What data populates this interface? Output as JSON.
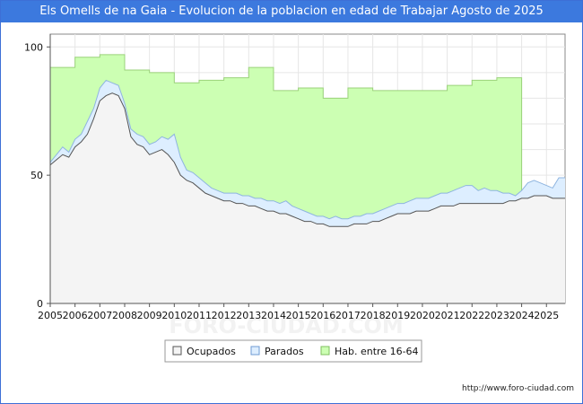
{
  "title": "Els Omells de na Gaia - Evolucion de la poblacion en edad de Trabajar Agosto de 2025",
  "source": "http://www.foro-ciudad.com",
  "watermark": "FORO-CIUDAD.COM",
  "chart_data": {
    "type": "area",
    "xlim": [
      2005,
      2025.75
    ],
    "ylim": [
      0,
      105
    ],
    "x_ticks": [
      "2005",
      "2006",
      "2007",
      "2008",
      "2009",
      "2010",
      "2011",
      "2012",
      "2013",
      "2014",
      "2015",
      "2016",
      "2017",
      "2018",
      "2019",
      "2020",
      "2021",
      "2022",
      "2023",
      "2024",
      "2025"
    ],
    "y_ticks": [
      0,
      50,
      100
    ],
    "grid": true,
    "legend_position": "bottom-center",
    "colors": {
      "hab": "#ccffb3",
      "hab_line": "#9ad27a",
      "parados": "#ddeeff",
      "parados_line": "#8fb5e0",
      "ocupados": "#f4f4f4",
      "ocupados_line": "#555555"
    },
    "series": [
      {
        "name": "Hab. entre 16-64",
        "step": true,
        "x": [
          2005,
          2006,
          2007,
          2008,
          2009,
          2010,
          2011,
          2012,
          2013,
          2014,
          2015,
          2016,
          2017,
          2018,
          2019,
          2020,
          2021,
          2022,
          2023,
          2024
        ],
        "values": [
          92,
          96,
          97,
          91,
          90,
          86,
          87,
          88,
          92,
          83,
          84,
          80,
          84,
          83,
          83,
          83,
          85,
          87,
          88,
          44
        ]
      },
      {
        "name": "Parados",
        "x": [
          2005,
          2005.25,
          2005.5,
          2005.75,
          2006,
          2006.25,
          2006.5,
          2006.75,
          2007,
          2007.25,
          2007.5,
          2007.75,
          2008,
          2008.25,
          2008.5,
          2008.75,
          2009,
          2009.25,
          2009.5,
          2009.75,
          2010,
          2010.25,
          2010.5,
          2010.75,
          2011,
          2011.25,
          2011.5,
          2011.75,
          2012,
          2012.25,
          2012.5,
          2012.75,
          2013,
          2013.25,
          2013.5,
          2013.75,
          2014,
          2014.25,
          2014.5,
          2014.75,
          2015,
          2015.25,
          2015.5,
          2015.75,
          2016,
          2016.25,
          2016.5,
          2016.75,
          2017,
          2017.25,
          2017.5,
          2017.75,
          2018,
          2018.25,
          2018.5,
          2018.75,
          2019,
          2019.25,
          2019.5,
          2019.75,
          2020,
          2020.25,
          2020.5,
          2020.75,
          2021,
          2021.25,
          2021.5,
          2021.75,
          2022,
          2022.25,
          2022.5,
          2022.75,
          2023,
          2023.25,
          2023.5,
          2023.75,
          2024,
          2024.25,
          2024.5,
          2024.75,
          2025,
          2025.25,
          2025.5
        ],
        "values": [
          55,
          58,
          61,
          59,
          64,
          66,
          71,
          76,
          84,
          87,
          86,
          85,
          78,
          68,
          66,
          65,
          62,
          63,
          65,
          64,
          66,
          57,
          52,
          51,
          49,
          47,
          45,
          44,
          43,
          43,
          43,
          42,
          42,
          41,
          41,
          40,
          40,
          39,
          40,
          38,
          37,
          36,
          35,
          34,
          34,
          33,
          34,
          33,
          33,
          34,
          34,
          35,
          35,
          36,
          37,
          38,
          39,
          39,
          40,
          41,
          41,
          41,
          42,
          43,
          43,
          44,
          45,
          46,
          46,
          44,
          45,
          44,
          44,
          43,
          43,
          42,
          44,
          47,
          48,
          47,
          46,
          45,
          49
        ]
      },
      {
        "name": "Ocupados",
        "x": [
          2005,
          2005.25,
          2005.5,
          2005.75,
          2006,
          2006.25,
          2006.5,
          2006.75,
          2007,
          2007.25,
          2007.5,
          2007.75,
          2008,
          2008.25,
          2008.5,
          2008.75,
          2009,
          2009.25,
          2009.5,
          2009.75,
          2010,
          2010.25,
          2010.5,
          2010.75,
          2011,
          2011.25,
          2011.5,
          2011.75,
          2012,
          2012.25,
          2012.5,
          2012.75,
          2013,
          2013.25,
          2013.5,
          2013.75,
          2014,
          2014.25,
          2014.5,
          2014.75,
          2015,
          2015.25,
          2015.5,
          2015.75,
          2016,
          2016.25,
          2016.5,
          2016.75,
          2017,
          2017.25,
          2017.5,
          2017.75,
          2018,
          2018.25,
          2018.5,
          2018.75,
          2019,
          2019.25,
          2019.5,
          2019.75,
          2020,
          2020.25,
          2020.5,
          2020.75,
          2021,
          2021.25,
          2021.5,
          2021.75,
          2022,
          2022.25,
          2022.5,
          2022.75,
          2023,
          2023.25,
          2023.5,
          2023.75,
          2024,
          2024.25,
          2024.5,
          2024.75,
          2025,
          2025.25,
          2025.5
        ],
        "values": [
          54,
          56,
          58,
          57,
          61,
          63,
          66,
          72,
          79,
          81,
          82,
          81,
          76,
          65,
          62,
          61,
          58,
          59,
          60,
          58,
          55,
          50,
          48,
          47,
          45,
          43,
          42,
          41,
          40,
          40,
          39,
          39,
          38,
          38,
          37,
          36,
          36,
          35,
          35,
          34,
          33,
          32,
          32,
          31,
          31,
          30,
          30,
          30,
          30,
          31,
          31,
          31,
          32,
          32,
          33,
          34,
          35,
          35,
          35,
          36,
          36,
          36,
          37,
          38,
          38,
          38,
          39,
          39,
          39,
          39,
          39,
          39,
          39,
          39,
          40,
          40,
          41,
          41,
          42,
          42,
          42,
          41,
          41
        ]
      }
    ]
  }
}
